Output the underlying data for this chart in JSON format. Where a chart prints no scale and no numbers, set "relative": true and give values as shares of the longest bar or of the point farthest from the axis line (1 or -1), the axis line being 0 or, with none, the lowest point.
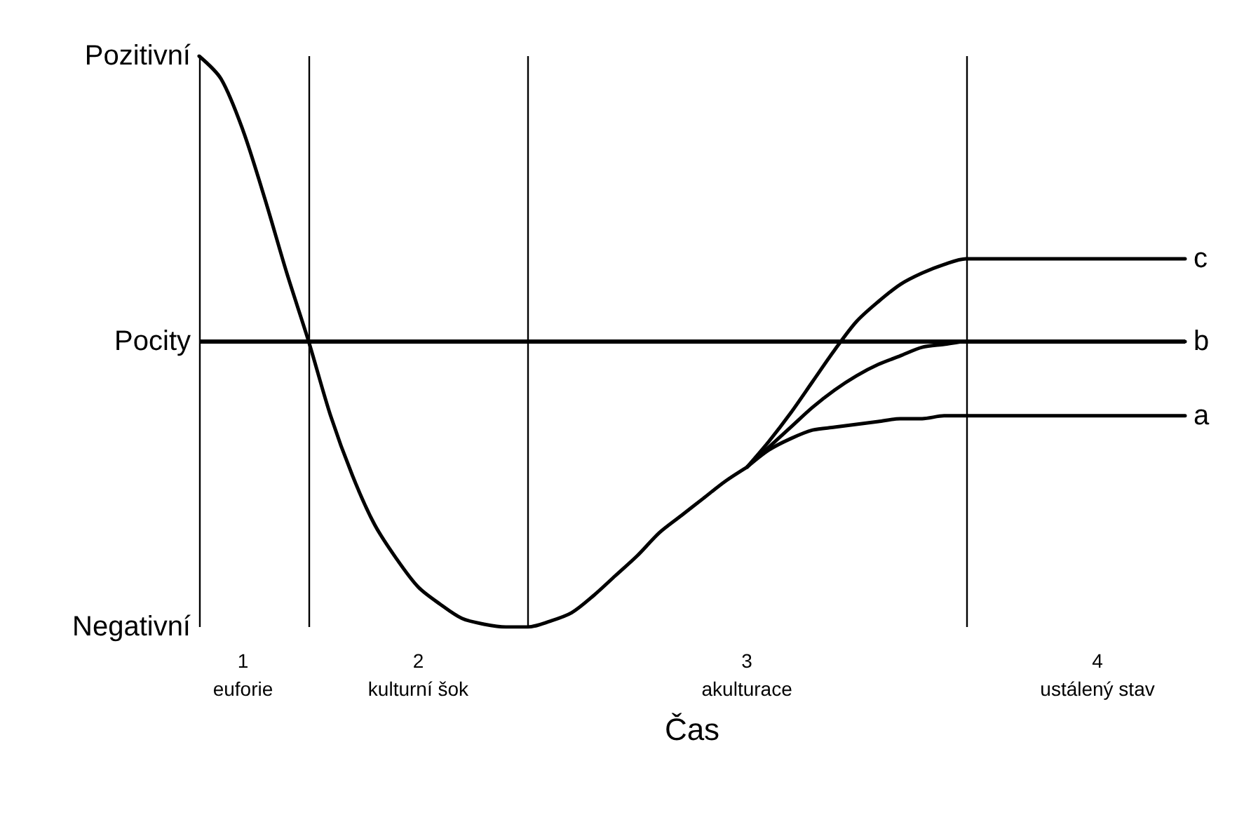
{
  "chart_data": {
    "type": "line",
    "relative": true,
    "xlabel": "Čas",
    "categories": [
      null,
      null,
      "1\neuforie",
      null,
      null,
      null,
      null,
      null,
      null,
      null,
      "2\nkulturní šok",
      null,
      null,
      null,
      null,
      null,
      null,
      null,
      null,
      null,
      null,
      null,
      null,
      null,
      null,
      "3\nakulturace",
      null,
      null,
      null,
      null,
      null,
      null,
      null,
      null,
      null,
      null,
      null,
      null,
      null,
      null,
      null,
      "4\nustálený stav",
      null,
      null,
      null,
      null
    ],
    "annotations": [
      "Pozitivní",
      "Pocity",
      "Negativní"
    ],
    "ref_lines": [
      {
        "axis": "y",
        "value": 0,
        "color": "#000000"
      }
    ],
    "series": [
      {
        "color": "#000000",
        "values": [
          1,
          0.92,
          0.74,
          0.5,
          0.24,
          0,
          -0.26,
          -0.47,
          -0.64,
          -0.76,
          -0.86,
          -0.92,
          -0.97,
          -0.99,
          -1,
          -1,
          -0.98,
          -0.95,
          -0.89,
          -0.82,
          -0.75,
          -0.67,
          -0.61,
          -0.55,
          -0.49,
          -0.44,
          null,
          null,
          null,
          null,
          null,
          null,
          null,
          null,
          null,
          null,
          null,
          null,
          null,
          null,
          null,
          null,
          null,
          null,
          null,
          null
        ]
      },
      {
        "name": "c",
        "color": "#000000",
        "values": [
          null,
          null,
          null,
          null,
          null,
          null,
          null,
          null,
          null,
          null,
          null,
          null,
          null,
          null,
          null,
          null,
          null,
          null,
          null,
          null,
          null,
          null,
          null,
          null,
          null,
          -0.44,
          -0.35,
          -0.25,
          -0.14,
          -0.03,
          0.07,
          0.14,
          0.2,
          0.24,
          0.27,
          0.29,
          0.29,
          0.29,
          0.29,
          0.29,
          0.29,
          0.29,
          0.29,
          0.29,
          0.29,
          0.29
        ]
      },
      {
        "name": "b",
        "color": "#000000",
        "values": [
          null,
          null,
          null,
          null,
          null,
          null,
          null,
          null,
          null,
          null,
          null,
          null,
          null,
          null,
          null,
          null,
          null,
          null,
          null,
          null,
          null,
          null,
          null,
          null,
          null,
          -0.44,
          -0.37,
          -0.3,
          -0.23,
          -0.17,
          -0.12,
          -0.08,
          -0.05,
          -0.02,
          -0.01,
          0,
          0,
          0,
          0,
          0,
          0,
          0,
          0,
          0,
          0,
          0
        ]
      },
      {
        "name": "a",
        "color": "#000000",
        "values": [
          null,
          null,
          null,
          null,
          null,
          null,
          null,
          null,
          null,
          null,
          null,
          null,
          null,
          null,
          null,
          null,
          null,
          null,
          null,
          null,
          null,
          null,
          null,
          null,
          null,
          -0.44,
          -0.38,
          -0.34,
          -0.31,
          -0.3,
          -0.29,
          -0.28,
          -0.27,
          -0.27,
          -0.26,
          -0.26,
          -0.26,
          -0.26,
          -0.26,
          -0.26,
          -0.26,
          -0.26,
          -0.26,
          -0.26,
          -0.26,
          -0.26
        ]
      }
    ],
    "marker": "none",
    "line_style": "solid",
    "grid": "x",
    "legend": false
  }
}
